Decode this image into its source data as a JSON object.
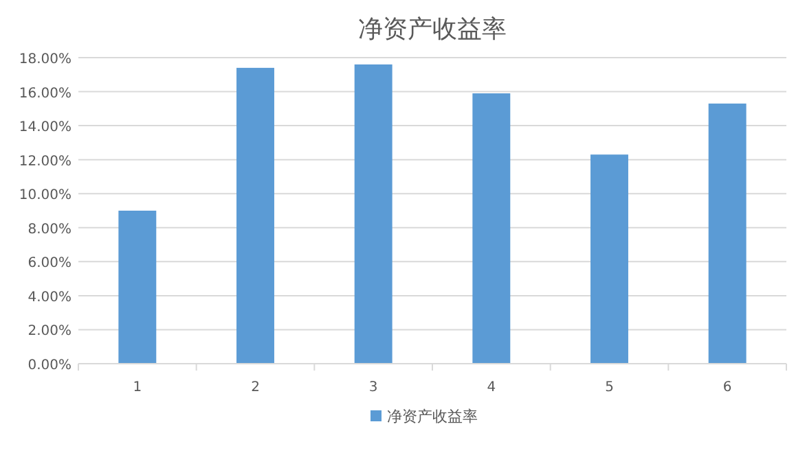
{
  "chart_data": {
    "type": "bar",
    "title": "净资产收益率",
    "categories": [
      "1",
      "2",
      "3",
      "4",
      "5",
      "6"
    ],
    "series": [
      {
        "name": "净资产收益率",
        "color": "#5b9bd5",
        "values": [
          9.0,
          17.4,
          17.6,
          15.9,
          12.3,
          15.3
        ]
      }
    ],
    "ylim": [
      0,
      18
    ],
    "yticks": [
      {
        "value": 0,
        "label": "0.00%"
      },
      {
        "value": 2,
        "label": "2.00%"
      },
      {
        "value": 4,
        "label": "4.00%"
      },
      {
        "value": 6,
        "label": "6.00%"
      },
      {
        "value": 8,
        "label": "8.00%"
      },
      {
        "value": 10,
        "label": "10.00%"
      },
      {
        "value": 12,
        "label": "12.00%"
      },
      {
        "value": 14,
        "label": "14.00%"
      },
      {
        "value": 16,
        "label": "16.00%"
      },
      {
        "value": 18,
        "label": "18.00%"
      }
    ],
    "grid": "y",
    "legend": "bottom"
  }
}
